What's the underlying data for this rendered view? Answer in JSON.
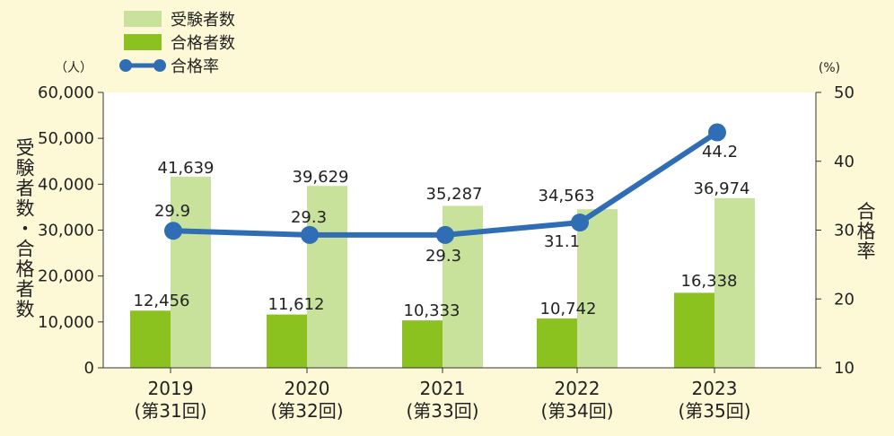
{
  "chart_data": {
    "type": "bar",
    "categories": [
      "2019",
      "2020",
      "2021",
      "2022",
      "2023"
    ],
    "category_sublabels": [
      "(第31回)",
      "(第32回)",
      "(第33回)",
      "(第34回)",
      "(第35回)"
    ],
    "series": [
      {
        "name": "受験者数",
        "axis": "left",
        "type": "bar",
        "color": "#c8e29c",
        "values": [
          41639,
          39629,
          35287,
          34563,
          36974
        ],
        "labels": [
          "41,639",
          "39,629",
          "35,287",
          "34,563",
          "36,974"
        ]
      },
      {
        "name": "合格者数",
        "axis": "left",
        "type": "bar",
        "color": "#8cc21f",
        "values": [
          12456,
          11612,
          10333,
          10742,
          16338
        ],
        "labels": [
          "12,456",
          "11,612",
          "10,333",
          "10,742",
          "16,338"
        ]
      },
      {
        "name": "合格率",
        "axis": "right",
        "type": "line",
        "color": "#2f6eb4",
        "values": [
          29.9,
          29.3,
          29.3,
          31.1,
          44.2
        ],
        "labels": [
          "29.9",
          "29.3",
          "29.3",
          "31.1",
          "44.2"
        ]
      }
    ],
    "left_axis": {
      "unit": "（人）",
      "label": "受験者数・合格者数",
      "ylim": [
        0,
        60000
      ],
      "ticks": [
        0,
        10000,
        20000,
        30000,
        40000,
        50000,
        60000
      ],
      "tick_labels": [
        "0",
        "10,000",
        "20,000",
        "30,000",
        "40,000",
        "50,000",
        "60,000"
      ]
    },
    "right_axis": {
      "unit": "(%)",
      "label": "合格率",
      "ylim": [
        10,
        50
      ],
      "ticks": [
        10,
        20,
        30,
        40,
        50
      ],
      "tick_labels": [
        "10",
        "20",
        "30",
        "40",
        "50"
      ]
    },
    "legend_placement": "top-left",
    "grid": false
  }
}
